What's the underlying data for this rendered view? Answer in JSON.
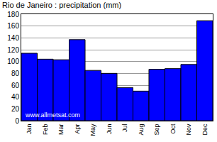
{
  "chart_data": {
    "type": "bar",
    "title": "Rio de Janeiro : precipitation (mm)",
    "categories": [
      "Jan",
      "Feb",
      "Mar",
      "Apr",
      "May",
      "Jun",
      "Jul",
      "Aug",
      "Sep",
      "Oct",
      "Nov",
      "Dec"
    ],
    "values": [
      114,
      104,
      103,
      137,
      85,
      80,
      56,
      50,
      87,
      88,
      95,
      169
    ],
    "color": "#0000ff",
    "ylim": [
      0,
      180
    ],
    "yticks": [
      0,
      20,
      40,
      60,
      80,
      100,
      120,
      140,
      160,
      180
    ],
    "grid": true,
    "annotations": [
      "www.allmetsat.com"
    ]
  }
}
